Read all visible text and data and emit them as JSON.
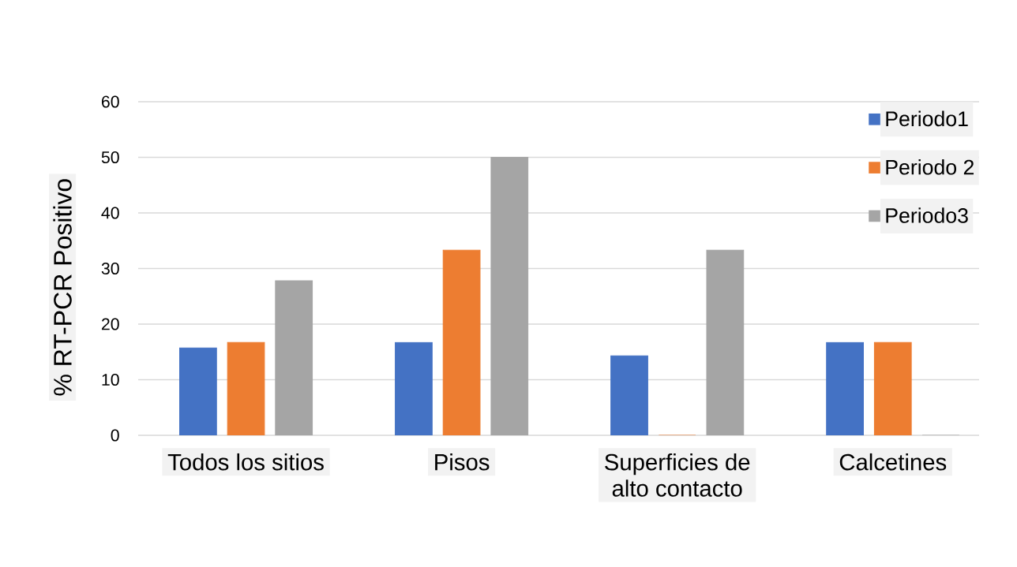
{
  "chart_data": {
    "type": "bar",
    "ylabel": "% RT-PCR Positivo",
    "categories": [
      "Todos los sitios",
      "Pisos",
      "Superficies de alto contacto",
      "Calcetines"
    ],
    "series": [
      {
        "name": "Periodo1",
        "color": "#4472c4",
        "values": [
          15.7,
          16.7,
          14.3,
          16.7
        ]
      },
      {
        "name": "Periodo 2",
        "color": "#ed7d31",
        "values": [
          16.7,
          33.3,
          0,
          16.7
        ]
      },
      {
        "name": "Periodo3",
        "color": "#a5a5a5",
        "values": [
          27.8,
          50,
          33.3,
          0
        ]
      }
    ],
    "ylim": [
      0,
      60
    ],
    "yticks": [
      0,
      10,
      20,
      30,
      40,
      50,
      60
    ],
    "grid": "y",
    "legend": "top right"
  }
}
